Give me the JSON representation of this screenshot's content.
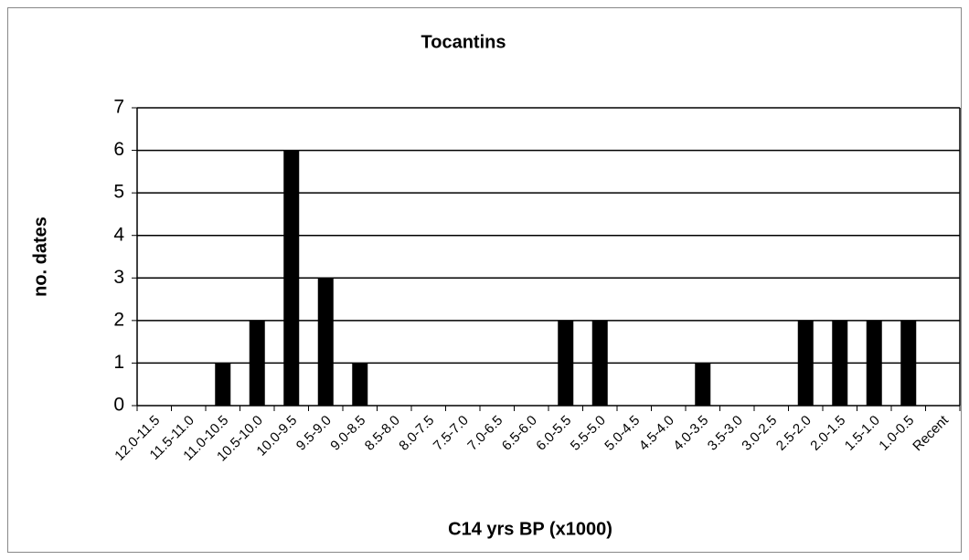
{
  "chart_data": {
    "type": "bar",
    "title": "Tocantins",
    "x_label": "C14 yrs BP (x1000)",
    "y_label": "no. dates",
    "categories": [
      "12.0-11.5",
      "11.5-11.0",
      "11.0-10.5",
      "10.5-10.0",
      "10.0-9.5",
      "9.5-9.0",
      "9.0-8.5",
      "8.5-8.0",
      "8.0-7.5",
      "7.5-7.0",
      "7.0-6.5",
      "6.5-6.0",
      "6.0-5.5",
      "5.5-5.0",
      "5.0-4.5",
      "4.5-4.0",
      "4.0-3.5",
      "3.5-3.0",
      "3.0-2.5",
      "2.5-2.0",
      "2.0-1.5",
      "1.5-1.0",
      "1.0-0.5",
      "Recent"
    ],
    "values": [
      0,
      0,
      1,
      2,
      6,
      3,
      1,
      0,
      0,
      0,
      0,
      0,
      2,
      2,
      0,
      0,
      1,
      0,
      0,
      2,
      2,
      2,
      2,
      0
    ],
    "color": "#000000",
    "ylim": [
      0,
      7
    ],
    "yticks": [
      0,
      1,
      2,
      3,
      4,
      5,
      6,
      7
    ],
    "grid": true
  }
}
